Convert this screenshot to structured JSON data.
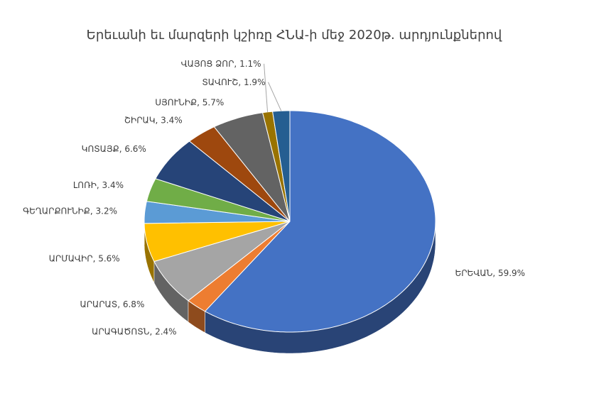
{
  "chart_data": {
    "type": "pie",
    "title": "Երեւանի եւ մարզերի կշիռը ՀՆԱ-ի մեջ 2020թ. արդյունքներով",
    "categories": [
      "ԵՐԵՎԱՆ",
      "ԱՐԱԳԱԾՈՏՆ",
      "ԱՐԱՐԱՏ",
      "ԱՐՄԱՎԻՐ",
      "ԳԵՂԱՐՔՈՒՆԻՔ",
      "ԼՈՌԻ",
      "ԿՈՏԱՅՔ",
      "ՇԻՐԱԿ",
      "ՍՅՈՒՆԻՔ",
      "ՎԱՅՈՑ ՁՈՐ",
      "ՏԱՎՈՒՇ"
    ],
    "values": [
      59.9,
      2.4,
      6.8,
      5.6,
      3.2,
      3.4,
      6.6,
      3.4,
      5.7,
      1.1,
      1.9
    ],
    "value_labels": [
      "59.9%",
      "2.4%",
      "6.8%",
      "5.6%",
      "3.2%",
      "3.4%",
      "6.6%",
      "3.4%",
      "5.7%",
      "1.1%",
      "1.9%"
    ],
    "label_separator": ", ",
    "colors": [
      "#4472c4",
      "#ed7d31",
      "#a5a5a5",
      "#ffc000",
      "#5b9bd5",
      "#70ad47",
      "#264478",
      "#9e480e",
      "#636363",
      "#997300",
      "#255e91"
    ]
  }
}
